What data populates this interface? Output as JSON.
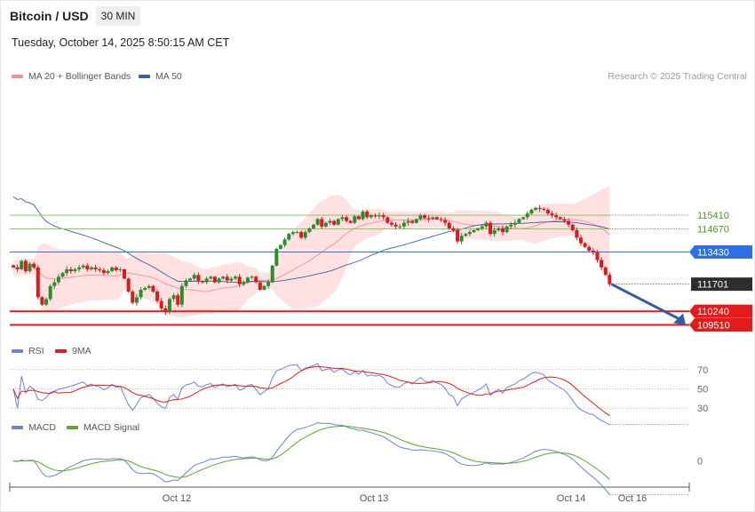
{
  "header": {
    "title": "Bitcoin / USD",
    "timeframe": "30 MIN",
    "datetime": "Tuesday, October 14, 2025 8:50:15 AM CET"
  },
  "credit": "Research © 2025 Trading Central",
  "colors": {
    "candle_up": "#2e8b2e",
    "candle_down": "#d81b1b",
    "band_fill": "#ffdcdc",
    "ma20": "#ff8c8c",
    "ma50": "#3a5fa8",
    "resistance": "#8fc46a",
    "pivot": "#2f6fe6",
    "support": "#e51a1a",
    "last_price": "#333333",
    "arrow": "#2d5fa6",
    "rsi": "#6b84d8",
    "rsi_ma": "#e51a1a",
    "macd": "#6b84d8",
    "macd_signal": "#58a82c"
  },
  "chart_data": [
    {
      "type": "candlestick",
      "title": "",
      "legend": [
        {
          "name": "MA 20 + Bollinger Bands",
          "color": "#ff8c8c"
        },
        {
          "name": "MA 50",
          "color": "#3a5fa8"
        }
      ],
      "x_ticks": [
        "Oct 12",
        "Oct 13",
        "Oct 14",
        "Oct 16"
      ],
      "y_range": [
        109200,
        122200
      ],
      "levels": [
        {
          "value": 115410,
          "label": "115410",
          "role": "resistance"
        },
        {
          "value": 114670,
          "label": "114670",
          "role": "resistance"
        },
        {
          "value": 113430,
          "label": "113430",
          "role": "pivot"
        },
        {
          "value": 111701,
          "label": "111701",
          "role": "last_price"
        },
        {
          "value": 110240,
          "label": "110240",
          "role": "support"
        },
        {
          "value": 109510,
          "label": "109510",
          "role": "support"
        }
      ],
      "forecast_arrow": {
        "from": 111701,
        "to": 109510
      },
      "close": [
        112600,
        112500,
        112950,
        112400,
        112800,
        112600,
        111000,
        110600,
        110900,
        111600,
        111800,
        112100,
        112300,
        112500,
        112400,
        112500,
        112600,
        112700,
        112500,
        112600,
        112500,
        112450,
        112300,
        112400,
        112600,
        112450,
        112500,
        112000,
        111300,
        110700,
        111000,
        111400,
        111500,
        111600,
        111300,
        110800,
        110400,
        110200,
        110900,
        111100,
        110600,
        111600,
        111900,
        112000,
        112200,
        111850,
        111800,
        112000,
        112100,
        111800,
        112000,
        112100,
        111900,
        112000,
        112100,
        111700,
        111800,
        112050,
        112100,
        111800,
        111400,
        111600,
        111800,
        112700,
        113600,
        113800,
        114100,
        114400,
        114500,
        114500,
        114200,
        114500,
        114700,
        114900,
        115200,
        114800,
        115000,
        115100,
        114900,
        115200,
        115300,
        115100,
        115000,
        115350,
        115200,
        115600,
        115300,
        115400,
        115350,
        115400,
        115300,
        115000,
        114900,
        114800,
        114800,
        115000,
        115100,
        115000,
        115200,
        115400,
        115250,
        115200,
        115300,
        115200,
        115150,
        115000,
        114700,
        114600,
        114000,
        114300,
        114400,
        114500,
        114600,
        114700,
        114800,
        115000,
        114400,
        114600,
        114700,
        114500,
        114800,
        114900,
        115000,
        115200,
        115300,
        115500,
        115700,
        115800,
        115750,
        115700,
        115500,
        115400,
        115300,
        115200,
        115100,
        114900,
        114600,
        114200,
        113900,
        113700,
        113500,
        113400,
        113000,
        112600,
        112200,
        111701
      ],
      "rsi": {
        "legend": [
          {
            "name": "RSI",
            "color": "#6b84d8"
          },
          {
            "name": "9MA",
            "color": "#e51a1a"
          }
        ],
        "levels": [
          70,
          50,
          30
        ],
        "range": [
          20,
          80
        ]
      },
      "macd": {
        "legend": [
          {
            "name": "MACD",
            "color": "#6b84d8"
          },
          {
            "name": "MACD Signal",
            "color": "#58a82c"
          }
        ],
        "zero_label": "0",
        "range": [
          -500,
          600
        ]
      }
    }
  ]
}
